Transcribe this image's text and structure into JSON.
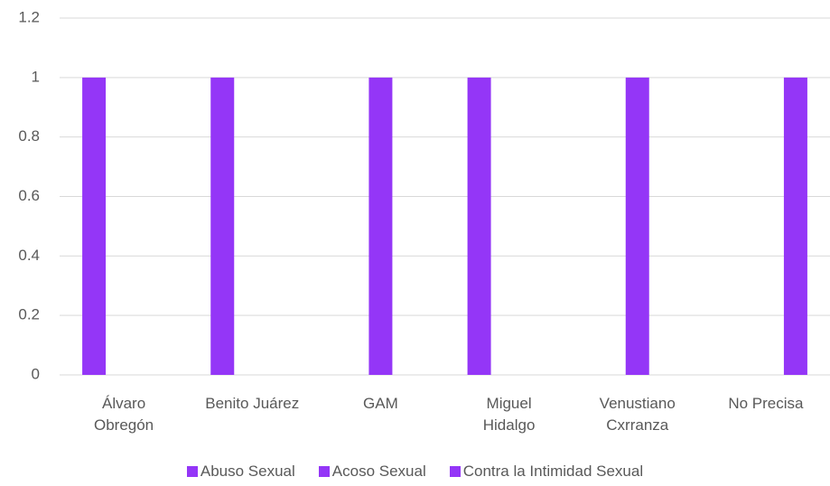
{
  "chart_data": {
    "type": "bar",
    "categories": [
      "Álvaro Obregón",
      "Benito Juárez",
      "GAM",
      "Miguel Hidalgo",
      "Venustiano Cxrranza",
      "No Precisa"
    ],
    "series": [
      {
        "name": "Abuso Sexual",
        "color": "#9436f7",
        "values": [
          1,
          1,
          0,
          1,
          0,
          0
        ]
      },
      {
        "name": "Acoso Sexual",
        "color": "#9436f7",
        "values": [
          0,
          0,
          1,
          0,
          1,
          0
        ]
      },
      {
        "name": "Contra la Intimidad Sexual",
        "color": "#9436f7",
        "values": [
          0,
          0,
          0,
          0,
          0,
          1
        ]
      }
    ],
    "ylim": [
      0,
      1.2
    ],
    "yticks": [
      0,
      0.2,
      0.4,
      0.6,
      0.8,
      1,
      1.2
    ],
    "grid": true,
    "legend": "bottom"
  }
}
